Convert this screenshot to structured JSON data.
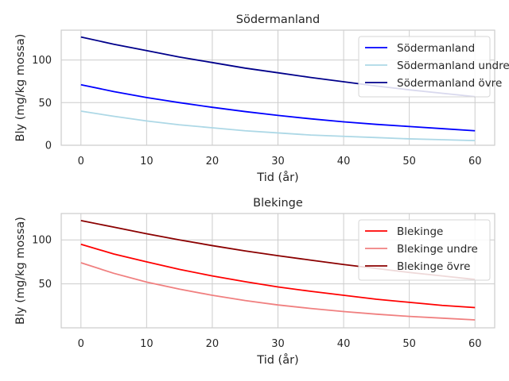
{
  "chart_data": [
    {
      "type": "line",
      "title": "Södermanland",
      "xlabel": "Tid (år)",
      "ylabel": "Bly (mg/kg mossa)",
      "xlim": [
        -3,
        63
      ],
      "ylim": [
        0,
        135
      ],
      "xticks": [
        0,
        10,
        20,
        30,
        40,
        50,
        60
      ],
      "yticks": [
        0,
        50,
        100
      ],
      "grid": true,
      "legend_position": "upper right",
      "x": [
        0,
        5,
        10,
        15,
        20,
        25,
        30,
        35,
        40,
        45,
        50,
        55,
        60
      ],
      "series": [
        {
          "name": "Södermanland",
          "color": "#0000ff",
          "values": [
            71,
            63,
            56,
            50,
            44.5,
            39.5,
            35,
            31,
            27.5,
            24.5,
            22,
            19.5,
            17
          ]
        },
        {
          "name": "Södermanland undre",
          "color": "#add8e6",
          "values": [
            40,
            34,
            28.5,
            24,
            20.5,
            17,
            14.5,
            12,
            10.5,
            9,
            7.5,
            6.5,
            5.5
          ]
        },
        {
          "name": "Södermanland övre",
          "color": "#00008b",
          "values": [
            127,
            118.5,
            111,
            103.5,
            97,
            90.5,
            85,
            79.5,
            74.5,
            69.5,
            65,
            61,
            57
          ]
        }
      ]
    },
    {
      "type": "line",
      "title": "Blekinge",
      "xlabel": "Tid (år)",
      "ylabel": "Bly (mg/kg mossa)",
      "xlim": [
        -3,
        63
      ],
      "ylim": [
        0,
        130
      ],
      "xticks": [
        0,
        10,
        20,
        30,
        40,
        50,
        60
      ],
      "yticks": [
        50,
        100
      ],
      "grid": true,
      "legend_position": "upper right",
      "x": [
        0,
        5,
        10,
        15,
        20,
        25,
        30,
        35,
        40,
        45,
        50,
        55,
        60
      ],
      "series": [
        {
          "name": "Blekinge",
          "color": "#ff0000",
          "values": [
            95,
            84,
            75,
            66.5,
            59,
            52.5,
            46.5,
            41.5,
            37,
            32.5,
            29,
            25.5,
            23
          ]
        },
        {
          "name": "Blekinge undre",
          "color": "#f08080",
          "values": [
            74,
            62,
            52,
            44,
            37,
            31,
            26,
            22,
            18.5,
            15.5,
            13,
            11,
            9
          ]
        },
        {
          "name": "Blekinge övre",
          "color": "#8b0000",
          "values": [
            122,
            114.5,
            107,
            100,
            93.5,
            87.5,
            82,
            77,
            72,
            67.5,
            63,
            59,
            55
          ]
        }
      ]
    }
  ]
}
